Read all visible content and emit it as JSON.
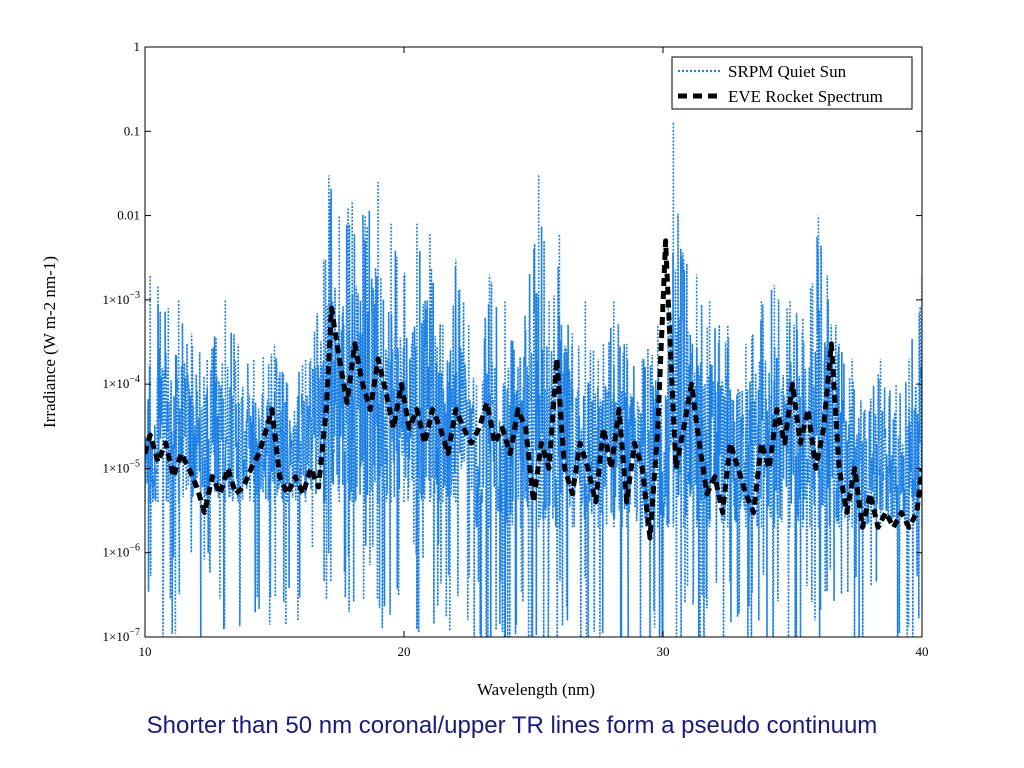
{
  "caption": "Shorter than 50 nm coronal/upper TR lines form a pseudo continuum",
  "chart_data": {
    "type": "line",
    "xlabel": "Wavelength (nm)",
    "ylabel": "Irradiance (W m-2 nm-1)",
    "xlim": [
      10,
      40
    ],
    "ylim": [
      1e-07,
      1
    ],
    "yscale": "log",
    "x_ticks": [
      10,
      20,
      30,
      40
    ],
    "x_tick_labels": [
      "10",
      "20",
      "30",
      "40"
    ],
    "y_ticks": [
      1e-07,
      1e-06,
      1e-05,
      0.0001,
      0.001,
      0.01,
      0.1,
      1
    ],
    "y_tick_labels": [
      {
        "base": "1",
        "mant": "",
        "exp": "",
        "text": "1"
      },
      {
        "base": "0.1",
        "mant": "",
        "exp": "",
        "text": "0.1"
      },
      {
        "base": "0.01",
        "mant": "",
        "exp": "",
        "text": "0.01"
      },
      {
        "base": "",
        "mant": "1×10",
        "exp": "−3",
        "text": "1×10−3"
      },
      {
        "base": "",
        "mant": "1×10",
        "exp": "−4",
        "text": "1×10−4"
      },
      {
        "base": "",
        "mant": "1×10",
        "exp": "−5",
        "text": "1×10−5"
      },
      {
        "base": "",
        "mant": "1×10",
        "exp": "−6",
        "text": "1×10−6"
      },
      {
        "base": "",
        "mant": "1×10",
        "exp": "−7",
        "text": "1×10−7"
      }
    ],
    "legend": {
      "placement": "top-right",
      "entries": [
        {
          "name": "SRPM Quiet Sun",
          "style": "dotted",
          "color": "#1a7fe8"
        },
        {
          "name": "EVE Rocket Spectrum",
          "style": "dashed",
          "color": "#000000"
        }
      ]
    },
    "series": [
      {
        "name": "SRPM Quiet Sun",
        "color": "#1a7fe8",
        "style": "dotted",
        "note_values": "dense emission-line spectrum; sampled envelope values",
        "x": [
          10.0,
          10.2,
          10.3,
          10.5,
          10.9,
          11.3,
          11.8,
          12.4,
          13.1,
          13.6,
          14.2,
          15.0,
          15.5,
          16.2,
          16.9,
          17.1,
          17.5,
          18.0,
          18.5,
          19.0,
          19.5,
          20.0,
          20.5,
          21.0,
          21.5,
          22.0,
          22.5,
          22.8,
          23.3,
          23.9,
          24.5,
          25.2,
          25.6,
          26.0,
          26.5,
          27.0,
          27.5,
          28.1,
          28.6,
          29.2,
          29.8,
          30.2,
          30.4,
          30.8,
          31.3,
          31.8,
          32.5,
          33.2,
          33.8,
          34.3,
          34.9,
          35.4,
          36.0,
          36.8,
          37.3,
          37.8,
          38.4,
          39.0,
          39.5,
          40.0
        ],
        "y": [
          2e-05,
          0.002,
          1e-05,
          0.0015,
          0.0008,
          0.001,
          0.0004,
          0.0002,
          0.001,
          0.0003,
          0.0002,
          0.0003,
          0.0001,
          0.0002,
          0.003,
          0.03,
          0.01,
          0.015,
          0.01,
          0.025,
          0.008,
          0.002,
          0.008,
          0.006,
          0.0005,
          0.003,
          0.0005,
          0.0001,
          0.002,
          0.001,
          0.0002,
          0.03,
          0.001,
          0.006,
          0.0004,
          0.001,
          0.0002,
          0.001,
          0.0003,
          0.0002,
          0.0005,
          0.001,
          0.13,
          0.003,
          0.002,
          0.001,
          0.0005,
          0.0003,
          0.001,
          0.0015,
          0.001,
          0.0006,
          0.01,
          0.0003,
          0.0002,
          5e-05,
          0.0002,
          0.0001,
          0.0002,
          0.002
        ]
      },
      {
        "name": "EVE Rocket Spectrum",
        "color": "#000000",
        "style": "dashed",
        "x": [
          10.0,
          10.2,
          10.5,
          10.8,
          11.1,
          11.4,
          11.7,
          12.0,
          12.3,
          12.6,
          12.9,
          13.2,
          13.5,
          13.8,
          14.1,
          14.4,
          14.7,
          14.9,
          15.2,
          15.5,
          15.8,
          16.1,
          16.4,
          16.7,
          17.0,
          17.2,
          17.5,
          17.8,
          18.1,
          18.4,
          18.7,
          19.0,
          19.3,
          19.6,
          19.9,
          20.2,
          20.5,
          20.8,
          21.1,
          21.4,
          21.7,
          22.0,
          22.3,
          22.6,
          22.9,
          23.2,
          23.5,
          23.8,
          24.1,
          24.4,
          24.7,
          25.0,
          25.3,
          25.6,
          25.9,
          26.2,
          26.5,
          26.8,
          27.1,
          27.4,
          27.7,
          28.0,
          28.3,
          28.6,
          28.9,
          29.2,
          29.5,
          29.8,
          30.1,
          30.3,
          30.5,
          30.8,
          31.1,
          31.4,
          31.7,
          32.0,
          32.3,
          32.6,
          32.9,
          33.2,
          33.5,
          33.8,
          34.1,
          34.4,
          34.7,
          35.0,
          35.3,
          35.6,
          35.9,
          36.2,
          36.5,
          36.8,
          37.1,
          37.4,
          37.7,
          38.0,
          38.3,
          38.6,
          38.9,
          39.2,
          39.5,
          39.8,
          40.0
        ],
        "y": [
          1.5e-05,
          2.5e-05,
          1.2e-05,
          2e-05,
          8e-06,
          1.5e-05,
          1e-05,
          6e-06,
          3e-06,
          8e-06,
          5e-06,
          1e-05,
          5e-06,
          6e-06,
          1e-05,
          1.5e-05,
          3e-05,
          5e-05,
          8e-06,
          5e-06,
          8e-06,
          5e-06,
          1e-05,
          6e-06,
          5e-05,
          0.0008,
          0.0002,
          6e-05,
          0.0003,
          0.0001,
          5e-05,
          0.0002,
          8e-05,
          3e-05,
          0.0001,
          3e-05,
          5e-05,
          2e-05,
          5e-05,
          3e-05,
          1.5e-05,
          5e-05,
          3e-05,
          2e-05,
          3e-05,
          6e-05,
          2e-05,
          3e-05,
          1.5e-05,
          5e-05,
          3e-05,
          4e-06,
          2e-05,
          1e-05,
          0.0002,
          1e-05,
          5e-06,
          2e-05,
          1e-05,
          4e-06,
          3e-05,
          1e-05,
          5e-05,
          4e-06,
          2e-05,
          1e-05,
          1.5e-06,
          3e-05,
          0.005,
          0.0002,
          1e-05,
          3e-05,
          0.0001,
          2e-05,
          5e-06,
          8e-06,
          3e-06,
          2e-05,
          1e-05,
          5e-06,
          3e-06,
          2e-05,
          1e-05,
          5e-05,
          2e-05,
          0.0001,
          2e-05,
          5e-05,
          1e-05,
          3e-05,
          0.0003,
          1e-05,
          3e-06,
          1e-05,
          2e-06,
          5e-06,
          2e-06,
          3e-06,
          2e-06,
          3e-06,
          2e-06,
          3e-06,
          1e-05
        ]
      }
    ]
  }
}
